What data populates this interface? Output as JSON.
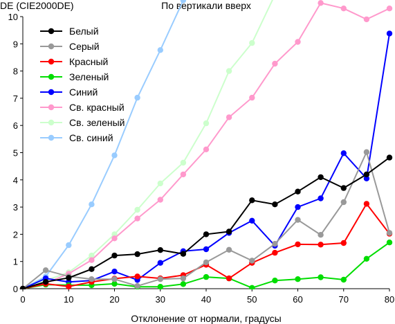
{
  "chart_data": {
    "type": "line",
    "title": "По вертикали вверх",
    "ylabel": "DE (CIE2000DE)",
    "xlabel": "Отклонение от нормали, градусы",
    "x": [
      0,
      5,
      10,
      15,
      20,
      25,
      30,
      35,
      40,
      45,
      50,
      55,
      60,
      65,
      70,
      75,
      80
    ],
    "xlim": [
      0,
      80
    ],
    "ylim": [
      0,
      10
    ],
    "xticks": [
      "0",
      "10",
      "20",
      "30",
      "40",
      "50",
      "60",
      "70",
      "80"
    ],
    "yticks": [
      "0",
      "1",
      "2",
      "3",
      "4",
      "5",
      "6",
      "7",
      "8",
      "9",
      "10"
    ],
    "grid": false,
    "legend_position": "top-left",
    "series": [
      {
        "name": "Белый",
        "color": "#000000",
        "values": [
          0,
          0.25,
          0.4,
          0.72,
          1.22,
          1.27,
          1.42,
          1.28,
          2.0,
          2.1,
          3.25,
          3.1,
          3.57,
          4.1,
          3.7,
          4.2,
          4.82
        ]
      },
      {
        "name": "Серый",
        "color": "#999999",
        "values": [
          0,
          0.68,
          0.45,
          0.35,
          0.35,
          0.1,
          0.35,
          0.38,
          0.97,
          1.43,
          1.03,
          1.65,
          2.53,
          1.98,
          3.18,
          5.02,
          2.05
        ]
      },
      {
        "name": "Красный",
        "color": "#ff0000",
        "values": [
          0,
          0.18,
          0.08,
          0.25,
          0.37,
          0.45,
          0.38,
          0.5,
          0.88,
          0.38,
          0.95,
          1.32,
          1.63,
          1.62,
          1.68,
          3.12,
          2.02
        ]
      },
      {
        "name": "Зеленый",
        "color": "#00dd00",
        "values": [
          0,
          0.15,
          0.13,
          0.13,
          0.18,
          0.07,
          0.07,
          0.17,
          0.43,
          0.38,
          0.03,
          0.3,
          0.35,
          0.42,
          0.33,
          1.1,
          1.7
        ]
      },
      {
        "name": "Синий",
        "color": "#0000ff",
        "values": [
          0,
          0.38,
          0.25,
          0.3,
          0.63,
          0.32,
          0.95,
          1.38,
          1.45,
          2.05,
          2.5,
          1.58,
          3.0,
          3.32,
          4.98,
          4.05,
          9.38
        ]
      },
      {
        "name": "Св. красный",
        "color": "#ff99cc",
        "values": [
          0,
          0.2,
          0.55,
          1.05,
          1.85,
          2.58,
          3.27,
          4.2,
          5.12,
          6.3,
          7.02,
          8.27,
          9.07,
          10.5,
          10.3,
          9.9,
          10.3
        ]
      },
      {
        "name": "Св. зеленый",
        "color": "#ccffcc",
        "values": [
          0,
          0.3,
          0.6,
          1.22,
          2.0,
          2.9,
          3.87,
          4.63,
          6.08,
          8.0,
          9.03,
          10.8,
          null,
          null,
          null,
          null,
          null
        ]
      },
      {
        "name": "Св. синий",
        "color": "#99ccff",
        "values": [
          0,
          0.45,
          1.6,
          3.1,
          4.9,
          7.02,
          8.77,
          10.6,
          null,
          null,
          null,
          null,
          null,
          null,
          null,
          null,
          null
        ]
      }
    ]
  }
}
